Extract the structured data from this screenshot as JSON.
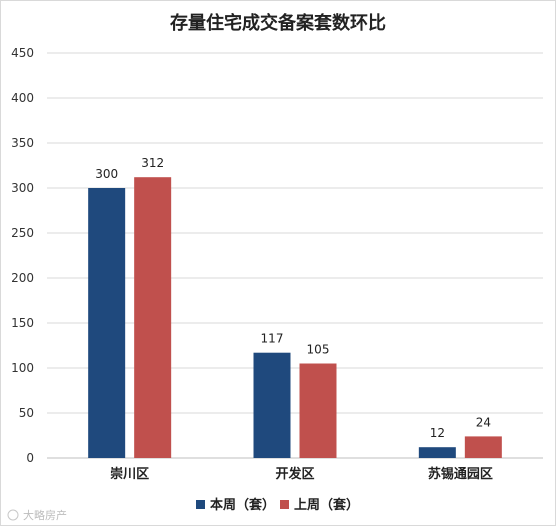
{
  "chart_data": {
    "type": "bar",
    "title": "存量住宅成交备案套数环比",
    "categories": [
      "崇川区",
      "开发区",
      "苏锡通园区"
    ],
    "series": [
      {
        "name": "本周（套）",
        "color": "#1f497d",
        "values": [
          300,
          117,
          12
        ]
      },
      {
        "name": "上周（套）",
        "color": "#c0504d",
        "values": [
          312,
          105,
          24
        ]
      }
    ],
    "ylim": [
      0,
      450
    ],
    "yticks": [
      0,
      50,
      100,
      150,
      200,
      250,
      300,
      350,
      400,
      450
    ],
    "grid": true,
    "legend_position": "bottom"
  },
  "watermark": "大略房产"
}
